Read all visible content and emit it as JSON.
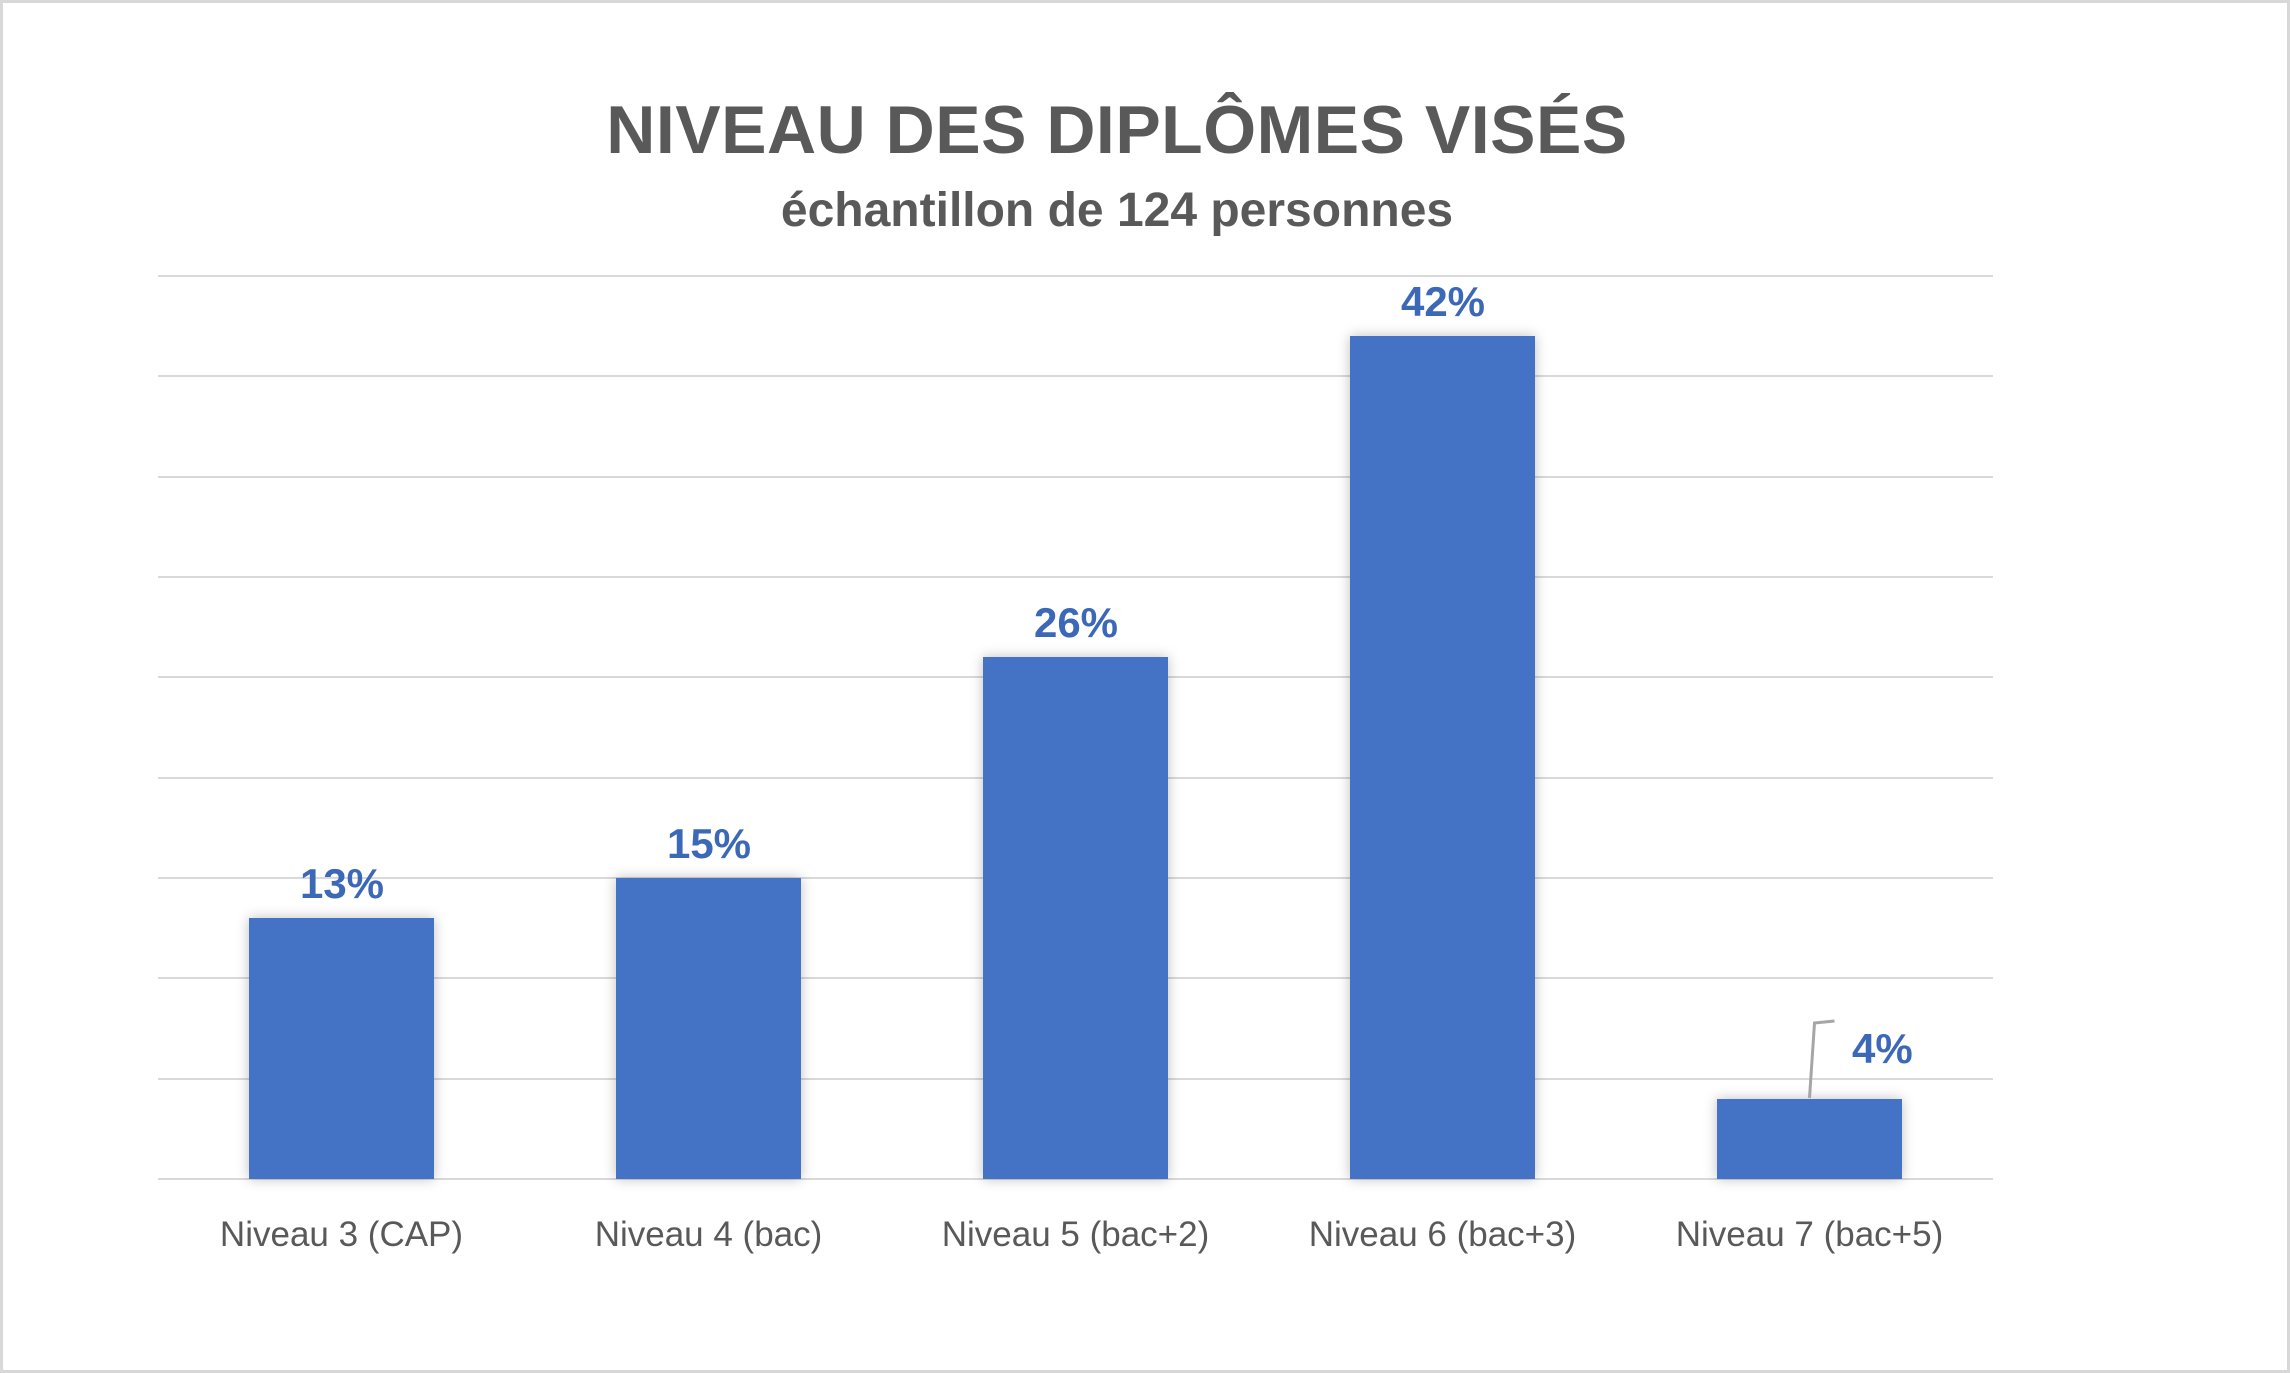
{
  "window": {
    "background": "#ffffff",
    "frame_border_color": "#d8d8d8"
  },
  "chart_data": {
    "type": "bar",
    "title": "NIVEAU DES DIPLÔMES VISÉS",
    "subtitle": "échantillon de 124 personnes",
    "categories": [
      "Niveau 3 (CAP)",
      "Niveau 4 (bac)",
      "Niveau 5 (bac+2)",
      "Niveau 6 (bac+3)",
      "Niveau 7 (bac+5)"
    ],
    "values": [
      13,
      15,
      26,
      42,
      4
    ],
    "data_labels": [
      "13%",
      "15%",
      "26%",
      "42%",
      "4%"
    ],
    "xlabel": "",
    "ylabel": "",
    "ylim": [
      0,
      45
    ],
    "gridline_step": 5,
    "grid": true,
    "y_axis_tick_labels_visible": false,
    "legend_position": "none",
    "last_label_has_leader_line": true,
    "colors": {
      "bar_fill": "#4472C4",
      "data_label_text": "#3C68B8",
      "title_text": "#595959",
      "axis_label_text": "#595959",
      "gridline": "#D9D9D9",
      "leader_line": "#A6A6A6"
    }
  }
}
